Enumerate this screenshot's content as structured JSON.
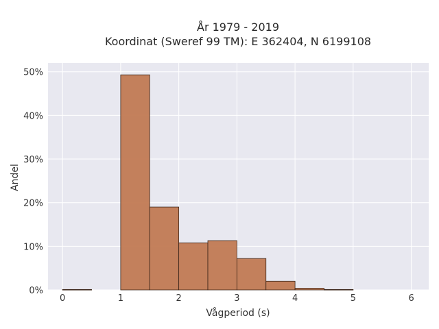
{
  "chart_data": {
    "type": "bar",
    "title": "År 1979 - 2019",
    "subtitle": "Koordinat (Sweref 99 TM): E 362404, N 6199108",
    "xlabel": "Vågperiod (s)",
    "ylabel": "Andel",
    "bin_width": 0.5,
    "bins": [
      {
        "start": 0.0,
        "end": 0.5,
        "value": 0.1
      },
      {
        "start": 1.0,
        "end": 1.5,
        "value": 49.3
      },
      {
        "start": 1.5,
        "end": 2.0,
        "value": 19.0
      },
      {
        "start": 2.0,
        "end": 2.5,
        "value": 10.8
      },
      {
        "start": 2.5,
        "end": 3.0,
        "value": 11.3
      },
      {
        "start": 3.0,
        "end": 3.5,
        "value": 7.2
      },
      {
        "start": 3.5,
        "end": 4.0,
        "value": 2.0
      },
      {
        "start": 4.0,
        "end": 4.5,
        "value": 0.4
      },
      {
        "start": 4.5,
        "end": 5.0,
        "value": 0.1
      }
    ],
    "xlim": [
      -0.25,
      6.3
    ],
    "ylim": [
      0,
      52
    ],
    "x_ticks": [
      0,
      1,
      2,
      3,
      4,
      5,
      6
    ],
    "x_tick_labels": [
      "0",
      "1",
      "2",
      "3",
      "4",
      "5",
      "6"
    ],
    "y_ticks": [
      0,
      10,
      20,
      30,
      40,
      50
    ],
    "y_tick_labels": [
      "0%",
      "10%",
      "20%",
      "30%",
      "40%",
      "50%"
    ],
    "grid": true,
    "bar_color": "#c17a53",
    "bar_edge_color": "#3a2418",
    "plot_background": "#e8e8f0",
    "grid_color": "#ffffff"
  }
}
